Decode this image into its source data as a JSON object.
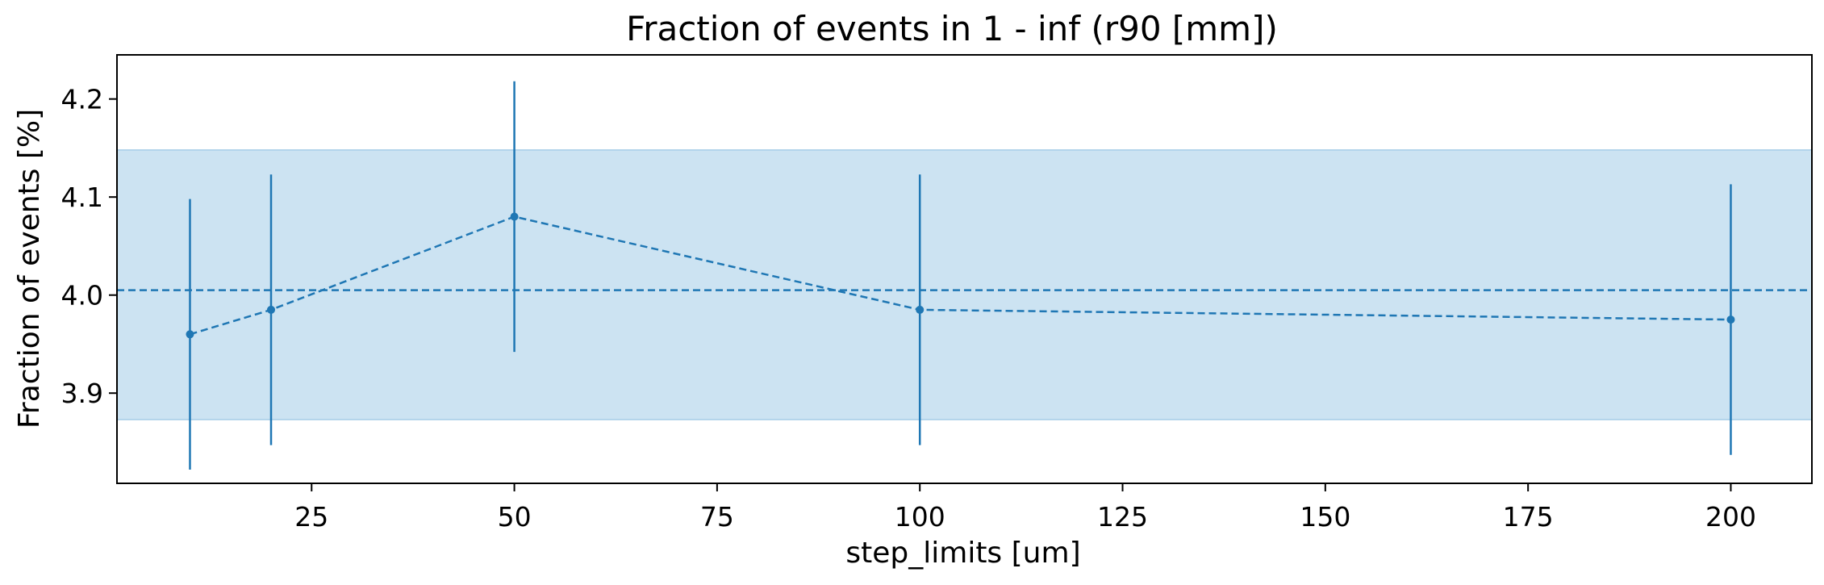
{
  "chart_data": {
    "type": "scatter",
    "title": "Fraction of events in 1 - inf (r90 [mm])",
    "xlabel": "step_limits [um]",
    "ylabel": "Fraction of events [%]",
    "xlim": [
      1,
      210
    ],
    "ylim": [
      3.808,
      4.245
    ],
    "x_ticks": [
      {
        "value": 25,
        "label": "25"
      },
      {
        "value": 50,
        "label": "50"
      },
      {
        "value": 75,
        "label": "75"
      },
      {
        "value": 100,
        "label": "100"
      },
      {
        "value": 125,
        "label": "125"
      },
      {
        "value": 150,
        "label": "150"
      },
      {
        "value": 175,
        "label": "175"
      },
      {
        "value": 200,
        "label": "200"
      }
    ],
    "y_ticks": [
      {
        "value": 3.9,
        "label": "3.9"
      },
      {
        "value": 4.0,
        "label": "4.0"
      },
      {
        "value": 4.1,
        "label": "4.1"
      },
      {
        "value": 4.2,
        "label": "4.2"
      }
    ],
    "grid": false,
    "series": [
      {
        "x": [
          10,
          20,
          50,
          100,
          200
        ],
        "y": [
          3.96,
          3.985,
          4.08,
          3.985,
          3.975
        ],
        "yerr": [
          0.138,
          0.138,
          0.138,
          0.138,
          0.138
        ],
        "color": "#1f77b4",
        "linestyle": "dashed",
        "marker": "circle"
      }
    ],
    "reference": {
      "mean": 4.005,
      "band": [
        3.873,
        4.148
      ],
      "line_color": "#1f77b4",
      "band_color": "#cce3f2"
    }
  }
}
